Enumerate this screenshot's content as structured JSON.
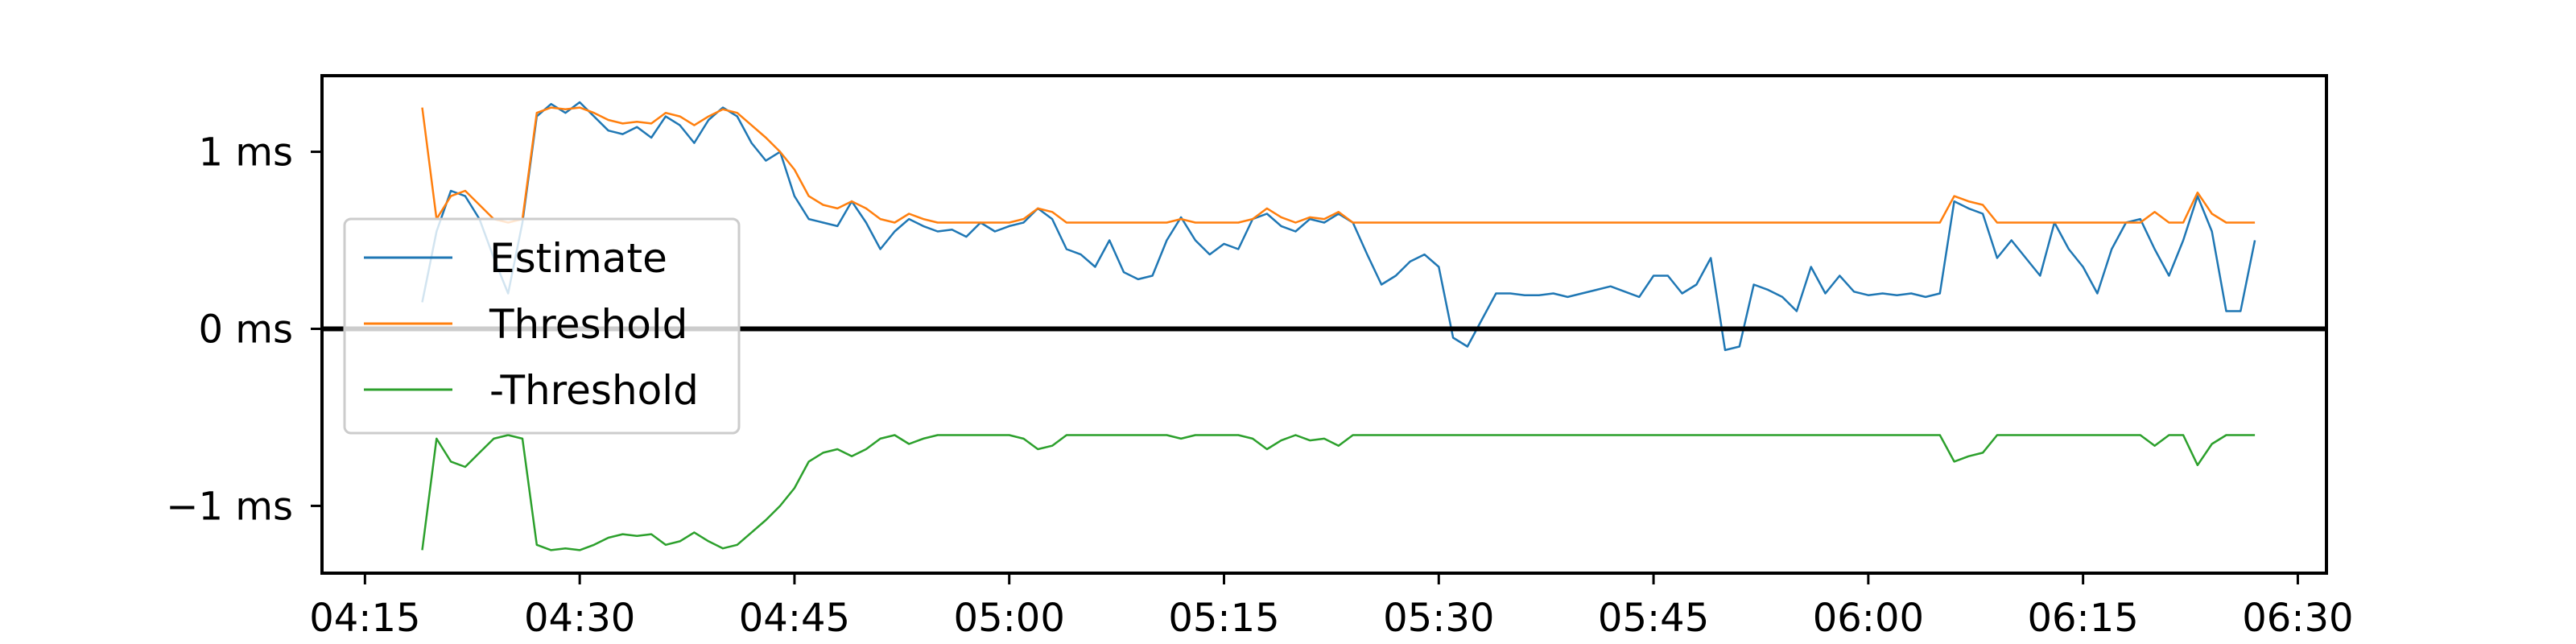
{
  "chart_data": {
    "type": "line",
    "title": "",
    "xlabel": "",
    "ylabel": "",
    "x_range": [
      "04:12",
      "06:32"
    ],
    "y_range": [
      -1.38,
      1.43
    ],
    "x_ticks": [
      "04:15",
      "04:30",
      "04:45",
      "05:00",
      "05:15",
      "05:30",
      "05:45",
      "06:00",
      "06:15",
      "06:30"
    ],
    "y_ticks": [
      {
        "value": 1,
        "label": "1 ms"
      },
      {
        "value": 0,
        "label": "0 ms"
      },
      {
        "value": -1,
        "label": "−1 ms"
      }
    ],
    "grid": false,
    "legend_position": "center-left",
    "zero_line": true,
    "series": [
      {
        "name": "Estimate",
        "color": "#1f77b4",
        "points": [
          [
            "04:19",
            0.15
          ],
          [
            "04:20",
            0.55
          ],
          [
            "04:21",
            0.78
          ],
          [
            "04:22",
            0.75
          ],
          [
            "04:23",
            0.62
          ],
          [
            "04:24",
            0.4
          ],
          [
            "04:25",
            0.2
          ],
          [
            "04:26",
            0.6
          ],
          [
            "04:27",
            1.2
          ],
          [
            "04:28",
            1.27
          ],
          [
            "04:29",
            1.22
          ],
          [
            "04:30",
            1.28
          ],
          [
            "04:31",
            1.2
          ],
          [
            "04:32",
            1.12
          ],
          [
            "04:33",
            1.1
          ],
          [
            "04:34",
            1.14
          ],
          [
            "04:35",
            1.08
          ],
          [
            "04:36",
            1.2
          ],
          [
            "04:37",
            1.15
          ],
          [
            "04:38",
            1.05
          ],
          [
            "04:39",
            1.18
          ],
          [
            "04:40",
            1.25
          ],
          [
            "04:41",
            1.2
          ],
          [
            "04:42",
            1.05
          ],
          [
            "04:43",
            0.95
          ],
          [
            "04:44",
            1.0
          ],
          [
            "04:45",
            0.75
          ],
          [
            "04:46",
            0.62
          ],
          [
            "04:47",
            0.6
          ],
          [
            "04:48",
            0.58
          ],
          [
            "04:49",
            0.72
          ],
          [
            "04:50",
            0.6
          ],
          [
            "04:51",
            0.45
          ],
          [
            "04:52",
            0.55
          ],
          [
            "04:53",
            0.62
          ],
          [
            "04:54",
            0.58
          ],
          [
            "04:55",
            0.55
          ],
          [
            "04:56",
            0.56
          ],
          [
            "04:57",
            0.52
          ],
          [
            "04:58",
            0.6
          ],
          [
            "04:59",
            0.55
          ],
          [
            "05:00",
            0.58
          ],
          [
            "05:01",
            0.6
          ],
          [
            "05:02",
            0.68
          ],
          [
            "05:03",
            0.62
          ],
          [
            "05:04",
            0.45
          ],
          [
            "05:05",
            0.42
          ],
          [
            "05:06",
            0.35
          ],
          [
            "05:07",
            0.5
          ],
          [
            "05:08",
            0.32
          ],
          [
            "05:09",
            0.28
          ],
          [
            "05:10",
            0.3
          ],
          [
            "05:11",
            0.5
          ],
          [
            "05:12",
            0.63
          ],
          [
            "05:13",
            0.5
          ],
          [
            "05:14",
            0.42
          ],
          [
            "05:15",
            0.48
          ],
          [
            "05:16",
            0.45
          ],
          [
            "05:17",
            0.62
          ],
          [
            "05:18",
            0.65
          ],
          [
            "05:19",
            0.58
          ],
          [
            "05:20",
            0.55
          ],
          [
            "05:21",
            0.62
          ],
          [
            "05:22",
            0.6
          ],
          [
            "05:23",
            0.65
          ],
          [
            "05:24",
            0.6
          ],
          [
            "05:25",
            0.42
          ],
          [
            "05:26",
            0.25
          ],
          [
            "05:27",
            0.3
          ],
          [
            "05:28",
            0.38
          ],
          [
            "05:29",
            0.42
          ],
          [
            "05:30",
            0.35
          ],
          [
            "05:31",
            -0.05
          ],
          [
            "05:32",
            -0.1
          ],
          [
            "05:33",
            0.05
          ],
          [
            "05:34",
            0.2
          ],
          [
            "05:35",
            0.2
          ],
          [
            "05:36",
            0.19
          ],
          [
            "05:37",
            0.19
          ],
          [
            "05:38",
            0.2
          ],
          [
            "05:39",
            0.18
          ],
          [
            "05:40",
            0.2
          ],
          [
            "05:41",
            0.22
          ],
          [
            "05:42",
            0.24
          ],
          [
            "05:43",
            0.21
          ],
          [
            "05:44",
            0.18
          ],
          [
            "05:45",
            0.3
          ],
          [
            "05:46",
            0.3
          ],
          [
            "05:47",
            0.2
          ],
          [
            "05:48",
            0.25
          ],
          [
            "05:49",
            0.4
          ],
          [
            "05:50",
            -0.12
          ],
          [
            "05:51",
            -0.1
          ],
          [
            "05:52",
            0.25
          ],
          [
            "05:53",
            0.22
          ],
          [
            "05:54",
            0.18
          ],
          [
            "05:55",
            0.1
          ],
          [
            "05:56",
            0.35
          ],
          [
            "05:57",
            0.2
          ],
          [
            "05:58",
            0.3
          ],
          [
            "05:59",
            0.21
          ],
          [
            "06:00",
            0.19
          ],
          [
            "06:01",
            0.2
          ],
          [
            "06:02",
            0.19
          ],
          [
            "06:03",
            0.2
          ],
          [
            "06:04",
            0.18
          ],
          [
            "06:05",
            0.2
          ],
          [
            "06:06",
            0.72
          ],
          [
            "06:07",
            0.68
          ],
          [
            "06:08",
            0.65
          ],
          [
            "06:09",
            0.4
          ],
          [
            "06:10",
            0.5
          ],
          [
            "06:11",
            0.4
          ],
          [
            "06:12",
            0.3
          ],
          [
            "06:13",
            0.6
          ],
          [
            "06:14",
            0.45
          ],
          [
            "06:15",
            0.35
          ],
          [
            "06:16",
            0.2
          ],
          [
            "06:17",
            0.45
          ],
          [
            "06:18",
            0.6
          ],
          [
            "06:19",
            0.62
          ],
          [
            "06:20",
            0.45
          ],
          [
            "06:21",
            0.3
          ],
          [
            "06:22",
            0.5
          ],
          [
            "06:23",
            0.75
          ],
          [
            "06:24",
            0.55
          ],
          [
            "06:25",
            0.1
          ],
          [
            "06:26",
            0.1
          ],
          [
            "06:27",
            0.5
          ]
        ]
      },
      {
        "name": "Threshold",
        "color": "#ff7f0e",
        "points": [
          [
            "04:19",
            1.25
          ],
          [
            "04:20",
            0.62
          ],
          [
            "04:21",
            0.75
          ],
          [
            "04:22",
            0.78
          ],
          [
            "04:23",
            0.7
          ],
          [
            "04:24",
            0.62
          ],
          [
            "04:25",
            0.6
          ],
          [
            "04:26",
            0.62
          ],
          [
            "04:27",
            1.22
          ],
          [
            "04:28",
            1.25
          ],
          [
            "04:29",
            1.24
          ],
          [
            "04:30",
            1.25
          ],
          [
            "04:31",
            1.22
          ],
          [
            "04:32",
            1.18
          ],
          [
            "04:33",
            1.16
          ],
          [
            "04:34",
            1.17
          ],
          [
            "04:35",
            1.16
          ],
          [
            "04:36",
            1.22
          ],
          [
            "04:37",
            1.2
          ],
          [
            "04:38",
            1.15
          ],
          [
            "04:39",
            1.2
          ],
          [
            "04:40",
            1.24
          ],
          [
            "04:41",
            1.22
          ],
          [
            "04:42",
            1.15
          ],
          [
            "04:43",
            1.08
          ],
          [
            "04:44",
            1.0
          ],
          [
            "04:45",
            0.9
          ],
          [
            "04:46",
            0.75
          ],
          [
            "04:47",
            0.7
          ],
          [
            "04:48",
            0.68
          ],
          [
            "04:49",
            0.72
          ],
          [
            "04:50",
            0.68
          ],
          [
            "04:51",
            0.62
          ],
          [
            "04:52",
            0.6
          ],
          [
            "04:53",
            0.65
          ],
          [
            "04:54",
            0.62
          ],
          [
            "04:55",
            0.6
          ],
          [
            "04:56",
            0.6
          ],
          [
            "04:57",
            0.6
          ],
          [
            "04:58",
            0.6
          ],
          [
            "04:59",
            0.6
          ],
          [
            "05:00",
            0.6
          ],
          [
            "05:01",
            0.62
          ],
          [
            "05:02",
            0.68
          ],
          [
            "05:03",
            0.66
          ],
          [
            "05:04",
            0.6
          ],
          [
            "05:10",
            0.6
          ],
          [
            "05:11",
            0.6
          ],
          [
            "05:12",
            0.62
          ],
          [
            "05:13",
            0.6
          ],
          [
            "05:16",
            0.6
          ],
          [
            "05:17",
            0.62
          ],
          [
            "05:18",
            0.68
          ],
          [
            "05:19",
            0.63
          ],
          [
            "05:20",
            0.6
          ],
          [
            "05:21",
            0.63
          ],
          [
            "05:22",
            0.62
          ],
          [
            "05:23",
            0.66
          ],
          [
            "05:24",
            0.6
          ],
          [
            "06:05",
            0.6
          ],
          [
            "06:06",
            0.75
          ],
          [
            "06:07",
            0.72
          ],
          [
            "06:08",
            0.7
          ],
          [
            "06:09",
            0.6
          ],
          [
            "06:19",
            0.6
          ],
          [
            "06:20",
            0.66
          ],
          [
            "06:21",
            0.6
          ],
          [
            "06:22",
            0.6
          ],
          [
            "06:23",
            0.77
          ],
          [
            "06:24",
            0.65
          ],
          [
            "06:25",
            0.6
          ],
          [
            "06:27",
            0.6
          ]
        ]
      },
      {
        "name": "-Threshold",
        "color": "#2ca02c",
        "points": [
          [
            "04:19",
            -1.25
          ],
          [
            "04:20",
            -0.62
          ],
          [
            "04:21",
            -0.75
          ],
          [
            "04:22",
            -0.78
          ],
          [
            "04:23",
            -0.7
          ],
          [
            "04:24",
            -0.62
          ],
          [
            "04:25",
            -0.6
          ],
          [
            "04:26",
            -0.62
          ],
          [
            "04:27",
            -1.22
          ],
          [
            "04:28",
            -1.25
          ],
          [
            "04:29",
            -1.24
          ],
          [
            "04:30",
            -1.25
          ],
          [
            "04:31",
            -1.22
          ],
          [
            "04:32",
            -1.18
          ],
          [
            "04:33",
            -1.16
          ],
          [
            "04:34",
            -1.17
          ],
          [
            "04:35",
            -1.16
          ],
          [
            "04:36",
            -1.22
          ],
          [
            "04:37",
            -1.2
          ],
          [
            "04:38",
            -1.15
          ],
          [
            "04:39",
            -1.2
          ],
          [
            "04:40",
            -1.24
          ],
          [
            "04:41",
            -1.22
          ],
          [
            "04:42",
            -1.15
          ],
          [
            "04:43",
            -1.08
          ],
          [
            "04:44",
            -1.0
          ],
          [
            "04:45",
            -0.9
          ],
          [
            "04:46",
            -0.75
          ],
          [
            "04:47",
            -0.7
          ],
          [
            "04:48",
            -0.68
          ],
          [
            "04:49",
            -0.72
          ],
          [
            "04:50",
            -0.68
          ],
          [
            "04:51",
            -0.62
          ],
          [
            "04:52",
            -0.6
          ],
          [
            "04:53",
            -0.65
          ],
          [
            "04:54",
            -0.62
          ],
          [
            "04:55",
            -0.6
          ],
          [
            "04:56",
            -0.6
          ],
          [
            "04:57",
            -0.6
          ],
          [
            "04:58",
            -0.6
          ],
          [
            "04:59",
            -0.6
          ],
          [
            "05:00",
            -0.6
          ],
          [
            "05:01",
            -0.62
          ],
          [
            "05:02",
            -0.68
          ],
          [
            "05:03",
            -0.66
          ],
          [
            "05:04",
            -0.6
          ],
          [
            "05:10",
            -0.6
          ],
          [
            "05:11",
            -0.6
          ],
          [
            "05:12",
            -0.62
          ],
          [
            "05:13",
            -0.6
          ],
          [
            "05:16",
            -0.6
          ],
          [
            "05:17",
            -0.62
          ],
          [
            "05:18",
            -0.68
          ],
          [
            "05:19",
            -0.63
          ],
          [
            "05:20",
            -0.6
          ],
          [
            "05:21",
            -0.63
          ],
          [
            "05:22",
            -0.62
          ],
          [
            "05:23",
            -0.66
          ],
          [
            "05:24",
            -0.6
          ],
          [
            "06:05",
            -0.6
          ],
          [
            "06:06",
            -0.75
          ],
          [
            "06:07",
            -0.72
          ],
          [
            "06:08",
            -0.7
          ],
          [
            "06:09",
            -0.6
          ],
          [
            "06:19",
            -0.6
          ],
          [
            "06:20",
            -0.66
          ],
          [
            "06:21",
            -0.6
          ],
          [
            "06:22",
            -0.6
          ],
          [
            "06:23",
            -0.77
          ],
          [
            "06:24",
            -0.65
          ],
          [
            "06:25",
            -0.6
          ],
          [
            "06:27",
            -0.6
          ]
        ]
      }
    ]
  }
}
